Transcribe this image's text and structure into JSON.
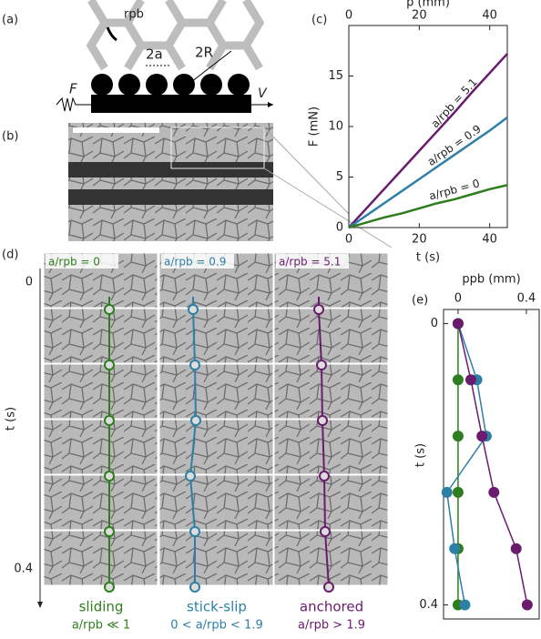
{
  "figure": {
    "panel_labels": [
      "(a)",
      "(b)",
      "(c)",
      "(d)",
      "(e)"
    ],
    "a": {
      "r_label": "rpb",
      "gap_label": "2a",
      "size_label": "2R",
      "force_label": "F",
      "velocity_label": "V"
    },
    "d": {
      "y_label": "t (s)",
      "yticks": [
        "0",
        "0.4"
      ],
      "columns": [
        {
          "header": "a/rpb = 0",
          "regime": "sliding",
          "condition": "a/rpb ≪ 1",
          "color": "#2e7d1e"
        },
        {
          "header": "a/rpb = 0.9",
          "regime": "stick-slip",
          "condition": "0 < a/rpb < 1.9",
          "color": "#2e7fa6"
        },
        {
          "header": "a/rpb = 5.1",
          "regime": "anchored",
          "condition": "a/rpb > 1.9",
          "color": "#6a1b6e"
        }
      ]
    }
  },
  "chart_data": [
    {
      "type": "line",
      "x_label": "t (s)",
      "x2_label": "p (mm)",
      "y_label": "F (mN)",
      "xlim": [
        0,
        45
      ],
      "xticks": [
        0,
        20,
        40
      ],
      "x2lim": [
        0,
        45
      ],
      "x2ticks": [
        0,
        20,
        40
      ],
      "ylim": [
        0,
        20
      ],
      "yticks": [
        0,
        5,
        10,
        15
      ],
      "x": [
        0,
        5,
        10,
        15,
        20,
        25,
        30,
        35,
        40,
        45
      ],
      "series": [
        {
          "name": "a/rpb = 5.1",
          "color": "#6a1b6e",
          "values": [
            0,
            1.9,
            3.8,
            5.7,
            7.6,
            9.5,
            11.4,
            13.4,
            15.3,
            17.2
          ]
        },
        {
          "name": "a/rpb = 0.9",
          "color": "#2e7fa6",
          "values": [
            0,
            1.2,
            2.4,
            3.6,
            4.8,
            6.0,
            7.2,
            8.4,
            9.6,
            10.9
          ]
        },
        {
          "name": "a/rpb = 0",
          "color": "#2e7d1e",
          "values": [
            0,
            0.5,
            1.0,
            1.4,
            1.9,
            2.4,
            2.8,
            3.3,
            3.8,
            4.2
          ]
        }
      ]
    },
    {
      "type": "line",
      "x_label": "ppb (mm)",
      "y_label": "t (s)",
      "xlim": [
        -0.085,
        0.475
      ],
      "xticks": [
        0,
        0.4
      ],
      "ylim": [
        -0.02,
        0.42
      ],
      "yticks": [
        0,
        0.4
      ],
      "y": [
        0,
        0.08,
        0.16,
        0.24,
        0.32,
        0.4
      ],
      "series": [
        {
          "name": "a/rpb = 0",
          "color": "#2e7d1e",
          "values": [
            0,
            0,
            0,
            0,
            0,
            0
          ]
        },
        {
          "name": "a/rpb = 0.9",
          "color": "#2e7fa6",
          "values": [
            0,
            0.11,
            0.165,
            -0.065,
            -0.02,
            0.04
          ]
        },
        {
          "name": "a/rpb = 5.1",
          "color": "#6a1b6e",
          "values": [
            0,
            0.075,
            0.14,
            0.21,
            0.34,
            0.405
          ]
        }
      ]
    }
  ]
}
